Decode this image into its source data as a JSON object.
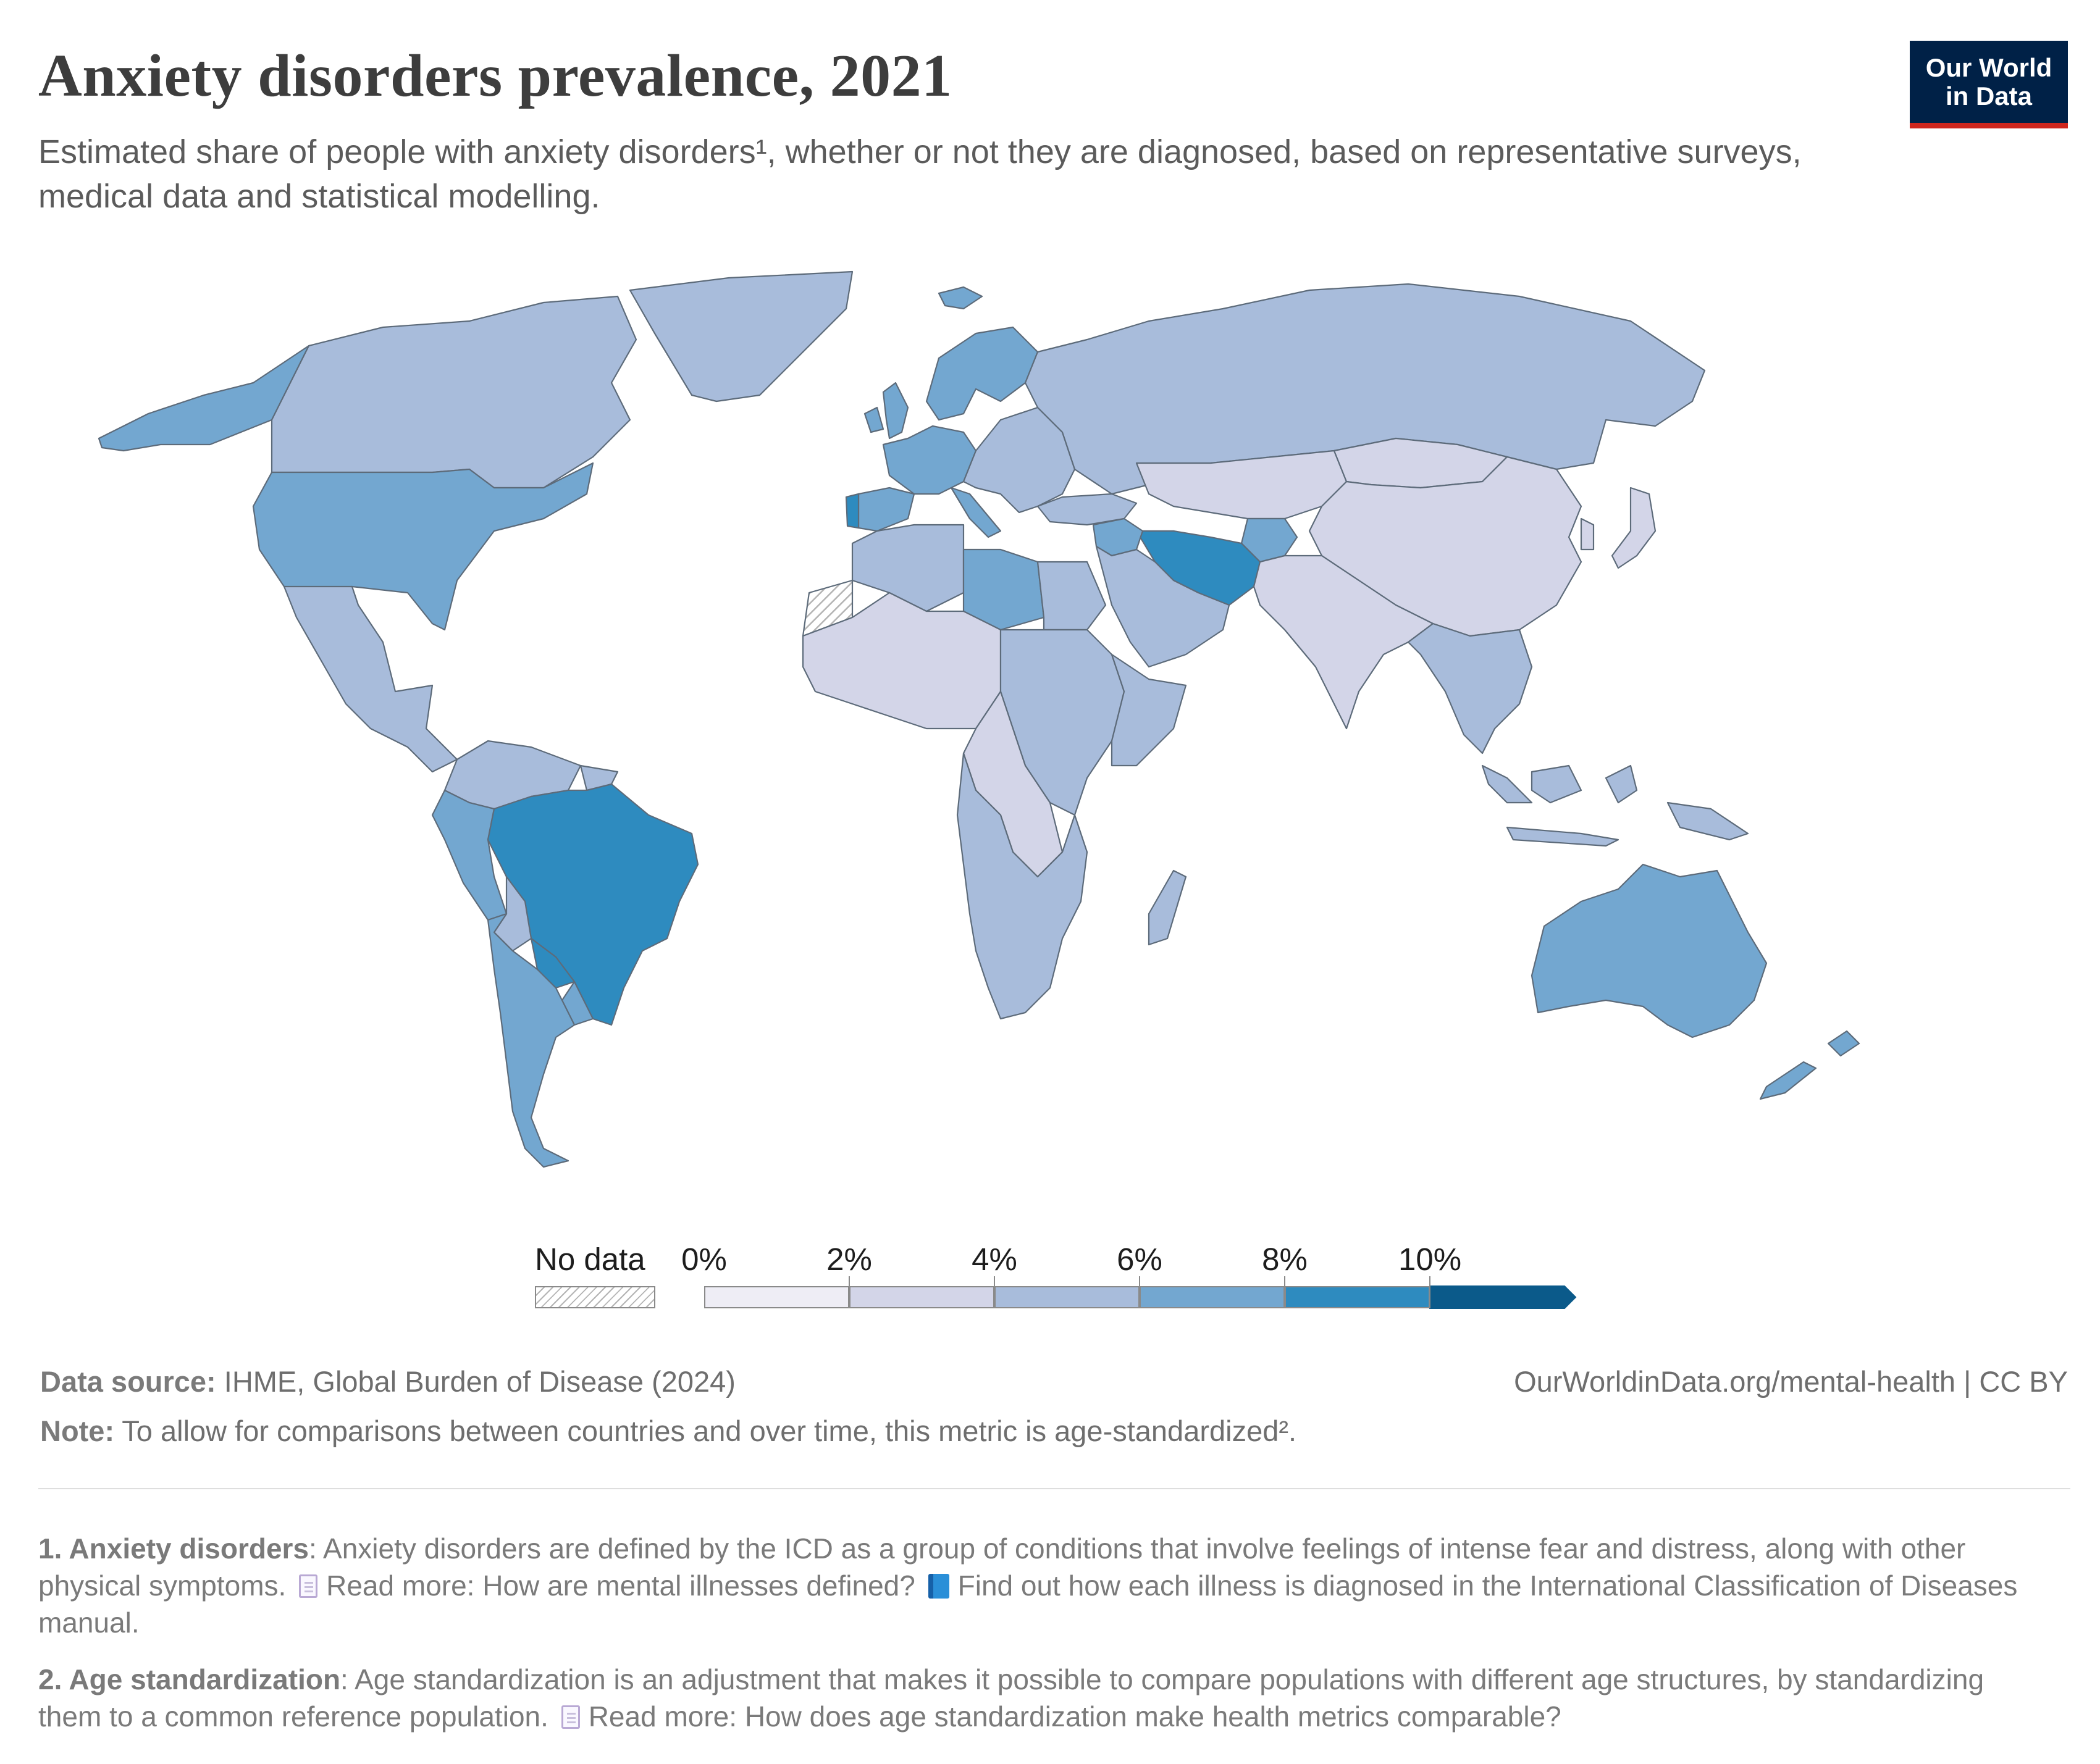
{
  "title": "Anxiety disorders prevalence, 2021",
  "subtitle": "Estimated share of people with anxiety disorders¹, whether or not they are diagnosed, based on representative surveys, medical data and statistical modelling.",
  "logo": {
    "line1": "Our World",
    "line2": "in Data",
    "background": "#002147",
    "stripe": "#ce261e"
  },
  "legend": {
    "no_data_label": "No data",
    "ticks": [
      "0%",
      "2%",
      "4%",
      "6%",
      "8%",
      "10%"
    ],
    "bins": [
      {
        "from": 0,
        "to": 2,
        "color": "#eeedf5"
      },
      {
        "from": 2,
        "to": 4,
        "color": "#d3d5e8"
      },
      {
        "from": 4,
        "to": 6,
        "color": "#a8bcdb"
      },
      {
        "from": 6,
        "to": 8,
        "color": "#73a7d0"
      },
      {
        "from": 8,
        "to": 10,
        "color": "#2e8bbf"
      },
      {
        "from": 10,
        "to": null,
        "color": "#0b5a8a"
      }
    ]
  },
  "map_data": {
    "type": "choropleth",
    "year": 2021,
    "unit": "%",
    "regions": [
      {
        "id": "canada",
        "bin": 2
      },
      {
        "id": "alaska",
        "bin": 3
      },
      {
        "id": "usa",
        "bin": 3
      },
      {
        "id": "greenland",
        "bin": 2
      },
      {
        "id": "mexico-central-america",
        "bin": 2
      },
      {
        "id": "colombia-venezuela",
        "bin": 2
      },
      {
        "id": "guianas",
        "bin": 2
      },
      {
        "id": "brazil",
        "bin": 4
      },
      {
        "id": "peru-ecuador",
        "bin": 3
      },
      {
        "id": "bolivia",
        "bin": 2
      },
      {
        "id": "paraguay",
        "bin": 4
      },
      {
        "id": "argentina-chile",
        "bin": 3
      },
      {
        "id": "uruguay",
        "bin": 3
      },
      {
        "id": "iceland",
        "bin": 3
      },
      {
        "id": "uk-ireland",
        "bin": 3
      },
      {
        "id": "scandinavia",
        "bin": 3
      },
      {
        "id": "western-europe",
        "bin": 3
      },
      {
        "id": "iberia",
        "bin": 3
      },
      {
        "id": "portugal",
        "bin": 4
      },
      {
        "id": "italy",
        "bin": 3
      },
      {
        "id": "eastern-europe",
        "bin": 2
      },
      {
        "id": "russia",
        "bin": 2
      },
      {
        "id": "turkey",
        "bin": 2
      },
      {
        "id": "kazakhstan-central-asia",
        "bin": 1
      },
      {
        "id": "china",
        "bin": 1
      },
      {
        "id": "mongolia",
        "bin": 1
      },
      {
        "id": "korea-japan",
        "bin": 1
      },
      {
        "id": "india-south-asia",
        "bin": 1
      },
      {
        "id": "southeast-asia",
        "bin": 2
      },
      {
        "id": "indonesia",
        "bin": 2
      },
      {
        "id": "papua-new-guinea",
        "bin": 2
      },
      {
        "id": "australia",
        "bin": 3
      },
      {
        "id": "new-zealand",
        "bin": 3
      },
      {
        "id": "iran",
        "bin": 4
      },
      {
        "id": "afghanistan",
        "bin": 3
      },
      {
        "id": "arabian-peninsula",
        "bin": 2
      },
      {
        "id": "levant",
        "bin": 3
      },
      {
        "id": "north-africa",
        "bin": 2
      },
      {
        "id": "libya",
        "bin": 3
      },
      {
        "id": "egypt",
        "bin": 2
      },
      {
        "id": "western-sahara",
        "bin": null
      },
      {
        "id": "west-africa",
        "bin": 1
      },
      {
        "id": "central-africa",
        "bin": 1
      },
      {
        "id": "east-africa",
        "bin": 2
      },
      {
        "id": "horn-of-africa",
        "bin": 2
      },
      {
        "id": "southern-africa",
        "bin": 2
      },
      {
        "id": "madagascar",
        "bin": 2
      }
    ]
  },
  "footer": {
    "source_label": "Data source:",
    "source_text": " IHME, Global Burden of Disease (2024)",
    "url": "OurWorldinData.org/mental-health | CC BY",
    "note_label": "Note:",
    "note_text": " To allow for comparisons between countries and over time, this metric is age-standardized²."
  },
  "footnotes": [
    {
      "label": "1. Anxiety disorders",
      "text": ": Anxiety disorders are defined by the ICD as a group of conditions that involve feelings of intense fear and distress, along with other physical symptoms.",
      "link1_text": "Read more: How are mental illnesses defined?",
      "link1_icon": "document-icon",
      "link2_text": "Find out how each illness is diagnosed in the International Classification of Diseases manual.",
      "link2_icon": "book-icon"
    },
    {
      "label": "2. Age standardization",
      "text": ": Age standardization is an adjustment that makes it possible to compare populations with different age structures, by standardizing them to a common reference population.",
      "link1_text": "Read more: How does age standardization make health metrics comparable?",
      "link1_icon": "document-icon"
    }
  ]
}
